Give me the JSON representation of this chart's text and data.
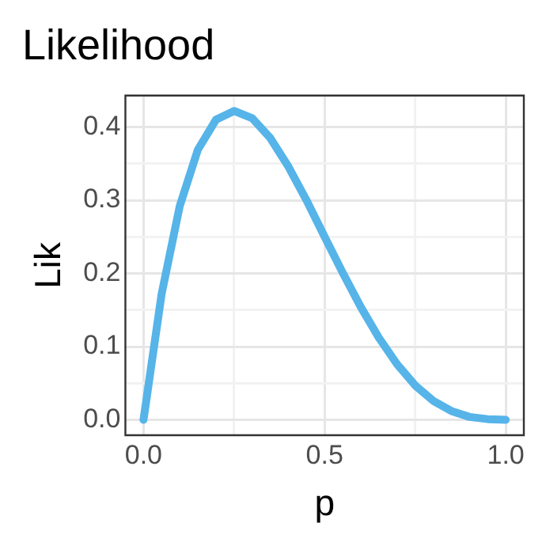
{
  "chart_data": {
    "type": "line",
    "title": "Likelihood",
    "xlabel": "p",
    "ylabel": "Lik",
    "x": [
      0,
      0.05,
      0.1,
      0.15,
      0.2,
      0.25,
      0.3,
      0.35,
      0.4,
      0.45,
      0.5,
      0.55,
      0.6,
      0.65,
      0.7,
      0.75,
      0.8,
      0.85,
      0.9,
      0.95,
      1
    ],
    "series": [
      {
        "color": "#56b4e9",
        "values": [
          0,
          0.172,
          0.292,
          0.369,
          0.41,
          0.422,
          0.412,
          0.385,
          0.346,
          0.3,
          0.25,
          0.201,
          0.154,
          0.112,
          0.076,
          0.047,
          0.026,
          0.012,
          0.004,
          0.001,
          0
        ]
      }
    ],
    "xlim": [
      -0.05,
      1.05
    ],
    "ylim": [
      -0.021,
      0.443
    ],
    "xticks": [
      {
        "value": 0,
        "label": "0.0"
      },
      {
        "value": 0.25,
        "label": null
      },
      {
        "value": 0.5,
        "label": "0.5"
      },
      {
        "value": 0.75,
        "label": null
      },
      {
        "value": 1,
        "label": "1.0"
      }
    ],
    "yticks": [
      {
        "value": 0,
        "label": "0.0"
      },
      {
        "value": 0.05,
        "label": null
      },
      {
        "value": 0.1,
        "label": "0.1"
      },
      {
        "value": 0.15,
        "label": null
      },
      {
        "value": 0.2,
        "label": "0.2"
      },
      {
        "value": 0.25,
        "label": null
      },
      {
        "value": 0.3,
        "label": "0.3"
      },
      {
        "value": 0.35,
        "label": null
      },
      {
        "value": 0.4,
        "label": "0.4"
      }
    ],
    "grid": true,
    "legend": false,
    "marker": "none",
    "line_style": "solid"
  }
}
